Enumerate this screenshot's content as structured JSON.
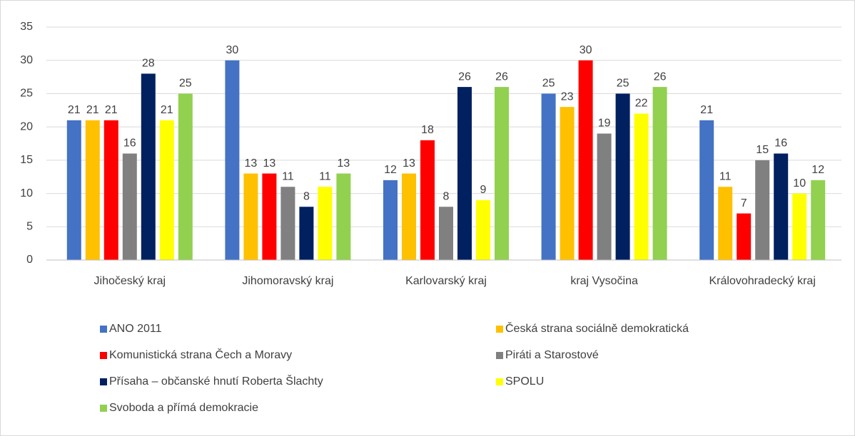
{
  "chart_data": {
    "type": "bar",
    "categories": [
      "Jihočeský kraj",
      "Jihomoravský kraj",
      "Karlovarský kraj",
      "kraj Vysočina",
      "Královohradecký kraj"
    ],
    "series": [
      {
        "name": "ANO 2011",
        "color": "#4472c4",
        "values": [
          21,
          30,
          12,
          25,
          21
        ]
      },
      {
        "name": "Česká strana sociálně demokratická",
        "color": "#ffc000",
        "values": [
          21,
          13,
          13,
          23,
          11
        ]
      },
      {
        "name": "Komunistická strana Čech a Moravy",
        "color": "#ff0000",
        "values": [
          21,
          13,
          18,
          30,
          7
        ]
      },
      {
        "name": "Piráti a Starostové",
        "color": "#808080",
        "values": [
          16,
          11,
          8,
          19,
          15
        ]
      },
      {
        "name": "Přísaha – občanské hnutí Roberta Šlachty",
        "color": "#002060",
        "values": [
          28,
          8,
          26,
          25,
          16
        ]
      },
      {
        "name": "SPOLU",
        "color": "#ffff00",
        "values": [
          21,
          11,
          9,
          22,
          10
        ]
      },
      {
        "name": "Svoboda a přímá demokracie",
        "color": "#92d050",
        "values": [
          25,
          13,
          26,
          26,
          12
        ]
      }
    ],
    "ylim": [
      0,
      35
    ],
    "yticks": [
      0,
      5,
      10,
      15,
      20,
      25,
      30,
      35
    ],
    "grid": true,
    "legend": "bottom"
  }
}
